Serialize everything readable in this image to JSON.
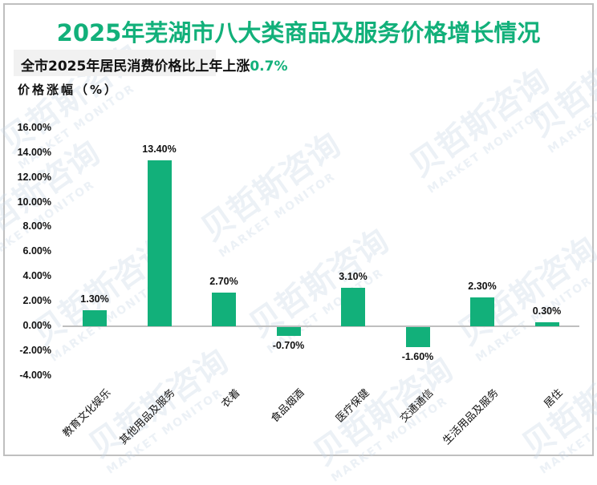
{
  "title": "2025年芜湖市八大类商品及服务价格增长情况",
  "subtitle": {
    "prefix": "全市2025年居民消费价格比上年上涨",
    "highlight": "0.7%"
  },
  "watermark": {
    "text": "贝哲斯咨询",
    "subtext": "MARKET MONITOR"
  },
  "colors": {
    "accent": "#12b07a",
    "bar": "#12b07a",
    "axis": "#bfbfbf",
    "border": "#bfbfbf",
    "subtitle_bg": "#f1f1f1"
  },
  "chart_data": {
    "type": "bar",
    "title": "2025年芜湖市八大类商品及服务价格增长情况",
    "subtitle": "全市2025年居民消费价格比上年上涨0.7%",
    "xlabel": "",
    "ylabel": "价格涨幅（%）",
    "categories": [
      "教育文化娱乐",
      "其他用品及服务",
      "衣着",
      "食品烟酒",
      "医疗保健",
      "交通通信",
      "生活用品及服务",
      "居住"
    ],
    "values": [
      1.3,
      13.4,
      2.7,
      -0.7,
      3.1,
      -1.6,
      2.3,
      0.3
    ],
    "value_labels": [
      "1.30%",
      "13.40%",
      "2.70%",
      "-0.70%",
      "3.10%",
      "-1.60%",
      "2.30%",
      "0.30%"
    ],
    "ylim": [
      -4,
      16
    ],
    "yticks": [
      16,
      14,
      12,
      10,
      8,
      6,
      4,
      2,
      0,
      -2,
      -4
    ],
    "ytick_labels": [
      "16.00%",
      "14.00%",
      "12.00%",
      "10.00%",
      "8.00%",
      "6.00%",
      "4.00%",
      "2.00%",
      "0.00%",
      "-2.00%",
      "-4.00%"
    ],
    "grid": false,
    "legend": "none"
  }
}
